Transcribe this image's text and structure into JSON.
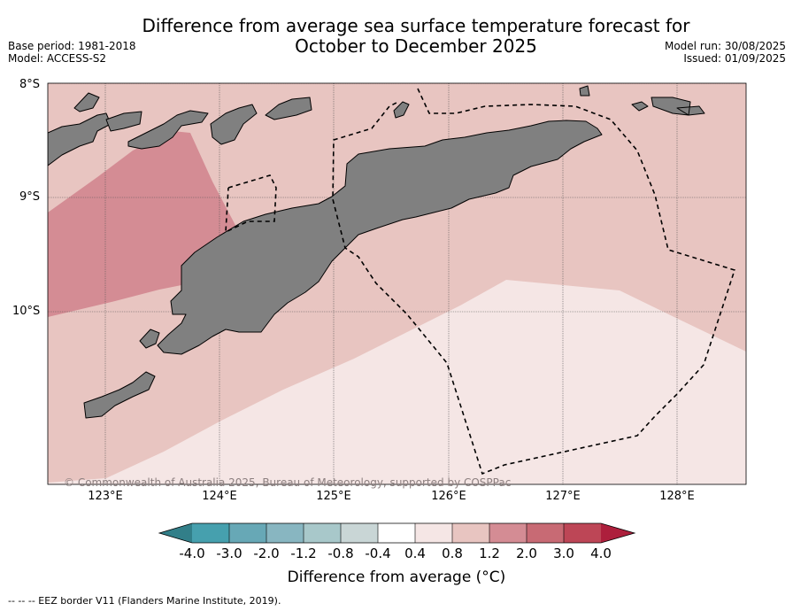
{
  "title_line1": "Difference from average sea surface temperature forecast for",
  "title_line2": "October to December 2025",
  "base_period": "Base period: 1981-2018",
  "model": "Model: ACCESS-S2",
  "model_run": "Model run: 30/08/2025",
  "issued": "Issued: 01/09/2025",
  "lat_labels": [
    "8°S",
    "9°S",
    "10°S"
  ],
  "lon_labels": [
    "123°E",
    "124°E",
    "125°E",
    "126°E",
    "127°E",
    "128°E"
  ],
  "copyright": "© Commonwealth of Australia 2025, Bureau of Meteorology, supported by COSPPac",
  "colorbar": {
    "ticks": [
      "-4.0",
      "-3.0",
      "-2.0",
      "-1.2",
      "-0.8",
      "-0.4",
      "0.4",
      "0.8",
      "1.2",
      "2.0",
      "3.0",
      "4.0"
    ],
    "colors": [
      "#46a0ae",
      "#67a8b6",
      "#88b6c1",
      "#a8c8ca",
      "#c9d6d6",
      "#ffffff",
      "#f5e6e5",
      "#e8c5c1",
      "#d48c94",
      "#c86a74",
      "#bd4656"
    ],
    "under_color": "#327f89",
    "over_color": "#ad1f3c",
    "label": "Difference from average (°C)"
  },
  "map": {
    "land_color": "#808080",
    "region_colors": {
      "c0_4_0_8": "#f5e6e5",
      "c0_8_1_2": "#e8c5c1",
      "c1_2_2_0": "#d48c94"
    }
  },
  "footnote": "--  --  -- EEZ border V11 (Flanders Marine Institute, 2019)."
}
